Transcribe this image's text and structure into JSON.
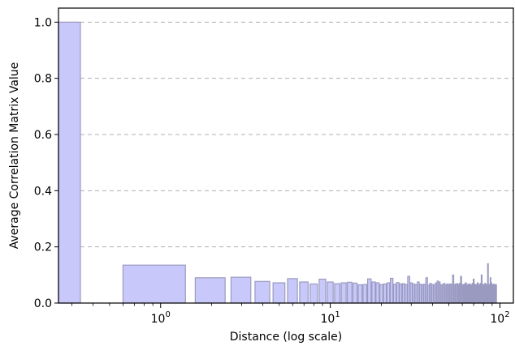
{
  "chart_data": {
    "type": "bar",
    "title": "",
    "xlabel": "Distance (log scale)",
    "ylabel": "Average Correlation Matrix Value",
    "x_scale": "log",
    "xlim": [
      0.25,
      120
    ],
    "ylim": [
      0,
      1.05
    ],
    "grid": "horizontal dashed",
    "legend": "none",
    "bar_color": "#c8c8fa",
    "bar_edge_color": "#9a9ac0",
    "y_ticks": [
      "0.0",
      "0.2",
      "0.4",
      "0.6",
      "0.8",
      "1.0"
    ],
    "x_ticks": [
      {
        "base": "10",
        "exp": "0",
        "value": 1
      },
      {
        "base": "10",
        "exp": "1",
        "value": 10
      },
      {
        "base": "10",
        "exp": "2",
        "value": 100
      }
    ],
    "bars_summary": "One bar per integer distance 0..95 plotted on a log x-axis; distance 0 drawn at the left edge.",
    "distances": [
      0,
      1,
      2,
      3,
      4,
      5,
      6,
      7,
      8,
      9,
      10,
      11,
      12,
      13,
      14,
      15,
      16,
      17,
      18,
      19,
      20,
      21,
      22,
      23,
      24,
      25,
      26,
      27,
      28,
      29,
      30,
      31,
      32,
      33,
      34,
      35,
      36,
      37,
      38,
      39,
      40,
      41,
      42,
      43,
      44,
      45,
      46,
      47,
      48,
      49,
      50,
      51,
      52,
      53,
      54,
      55,
      56,
      57,
      58,
      59,
      60,
      61,
      62,
      63,
      64,
      65,
      66,
      67,
      68,
      69,
      70,
      71,
      72,
      73,
      74,
      75,
      76,
      77,
      78,
      79,
      80,
      81,
      82,
      83,
      84,
      85,
      86,
      87,
      88,
      89,
      90,
      91,
      92,
      93,
      94,
      95
    ],
    "values": [
      1.0,
      0.135,
      0.09,
      0.092,
      0.077,
      0.072,
      0.087,
      0.075,
      0.068,
      0.085,
      0.075,
      0.069,
      0.072,
      0.074,
      0.071,
      0.065,
      0.066,
      0.086,
      0.075,
      0.072,
      0.066,
      0.068,
      0.072,
      0.088,
      0.067,
      0.073,
      0.068,
      0.069,
      0.066,
      0.095,
      0.072,
      0.068,
      0.066,
      0.075,
      0.067,
      0.066,
      0.067,
      0.09,
      0.064,
      0.07,
      0.066,
      0.065,
      0.071,
      0.078,
      0.075,
      0.065,
      0.066,
      0.07,
      0.064,
      0.068,
      0.066,
      0.068,
      0.067,
      0.1,
      0.066,
      0.068,
      0.069,
      0.066,
      0.07,
      0.095,
      0.066,
      0.065,
      0.067,
      0.072,
      0.065,
      0.066,
      0.068,
      0.066,
      0.064,
      0.07,
      0.085,
      0.067,
      0.065,
      0.066,
      0.072,
      0.065,
      0.066,
      0.07,
      0.1,
      0.066,
      0.065,
      0.067,
      0.07,
      0.066,
      0.064,
      0.14,
      0.065,
      0.066,
      0.09,
      0.072,
      0.066,
      0.065,
      0.067,
      0.064,
      0.066,
      0.065
    ]
  }
}
